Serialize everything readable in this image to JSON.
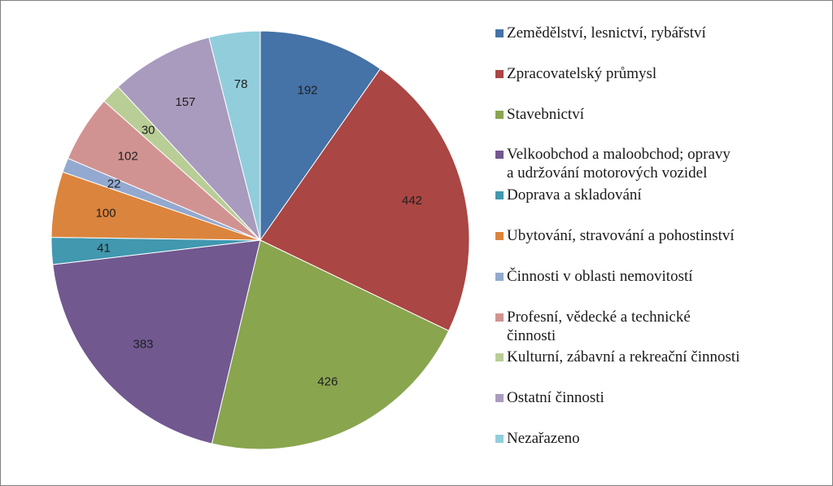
{
  "chart_data": {
    "type": "pie",
    "title": "",
    "start_angle_deg": 0,
    "direction": "clockwise",
    "legend_position": "right",
    "slices": [
      {
        "label": "Zemědělství, lesnictví, rybářství",
        "value": 192,
        "value_label": "192",
        "color": "#4572a7"
      },
      {
        "label": "Zpracovatelský průmysl",
        "value": 442,
        "value_label": "442",
        "color": "#aa4643"
      },
      {
        "label": "Stavebnictví",
        "value": 426,
        "value_label": "426",
        "color": "#89a54e"
      },
      {
        "label": "Velkoobchod a maloobchod; opravy\na udržování motorových vozidel",
        "value": 383,
        "value_label": "383",
        "color": "#71588f"
      },
      {
        "label": "Doprava a skladování",
        "value": 41,
        "value_label": "41",
        "color": "#4198af"
      },
      {
        "label": "Ubytování, stravování a pohostinství",
        "value": 100,
        "value_label": "100",
        "color": "#db843d"
      },
      {
        "label": "Činnosti v oblasti nemovitostí",
        "value": 22,
        "value_label": "22",
        "color": "#93a9cf"
      },
      {
        "label": "Profesní, vědecké a technické\nčinnosti",
        "value": 102,
        "value_label": "102",
        "color": "#d19392"
      },
      {
        "label": "Kulturní, zábavní a rekreační činnosti",
        "value": 30,
        "value_label": "30",
        "color": "#b9cd96"
      },
      {
        "label": "Ostatní činnosti",
        "value": 157,
        "value_label": "157",
        "color": "#a99bbd"
      },
      {
        "label": "Nezařazeno",
        "value": 78,
        "value_label": "78",
        "color": "#92cddc"
      }
    ]
  }
}
